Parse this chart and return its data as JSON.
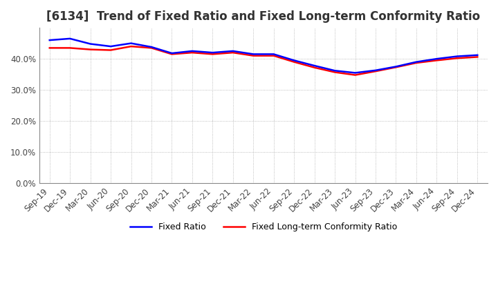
{
  "title": "[6134]  Trend of Fixed Ratio and Fixed Long-term Conformity Ratio",
  "title_fontsize": 12,
  "legend_labels": [
    "Fixed Ratio",
    "Fixed Long-term Conformity Ratio"
  ],
  "line_colors": [
    "#0000ff",
    "#ff0000"
  ],
  "background_color": "#ffffff",
  "plot_bg_color": "#ffffff",
  "grid_color": "#aaaaaa",
  "xlim_labels": [
    "Sep-19",
    "Dec-19",
    "Mar-20",
    "Jun-20",
    "Sep-20",
    "Dec-20",
    "Mar-21",
    "Jun-21",
    "Sep-21",
    "Dec-21",
    "Mar-22",
    "Jun-22",
    "Sep-22",
    "Dec-22",
    "Mar-23",
    "Jun-23",
    "Sep-23",
    "Dec-23",
    "Mar-24",
    "Jun-24",
    "Sep-24",
    "Dec-24"
  ],
  "fixed_ratio": [
    0.46,
    0.465,
    0.448,
    0.44,
    0.45,
    0.438,
    0.418,
    0.425,
    0.42,
    0.425,
    0.415,
    0.415,
    0.395,
    0.378,
    0.362,
    0.355,
    0.363,
    0.375,
    0.39,
    0.4,
    0.408,
    0.412
  ],
  "fixed_lt_conformity": [
    0.435,
    0.435,
    0.43,
    0.428,
    0.44,
    0.435,
    0.415,
    0.42,
    0.415,
    0.42,
    0.41,
    0.41,
    0.39,
    0.372,
    0.357,
    0.348,
    0.36,
    0.373,
    0.387,
    0.395,
    0.402,
    0.406
  ],
  "ylim": [
    0.0,
    0.5
  ],
  "yticks": [
    0.0,
    0.1,
    0.2,
    0.3,
    0.4
  ],
  "legend_fontsize": 9,
  "tick_fontsize": 8.5
}
